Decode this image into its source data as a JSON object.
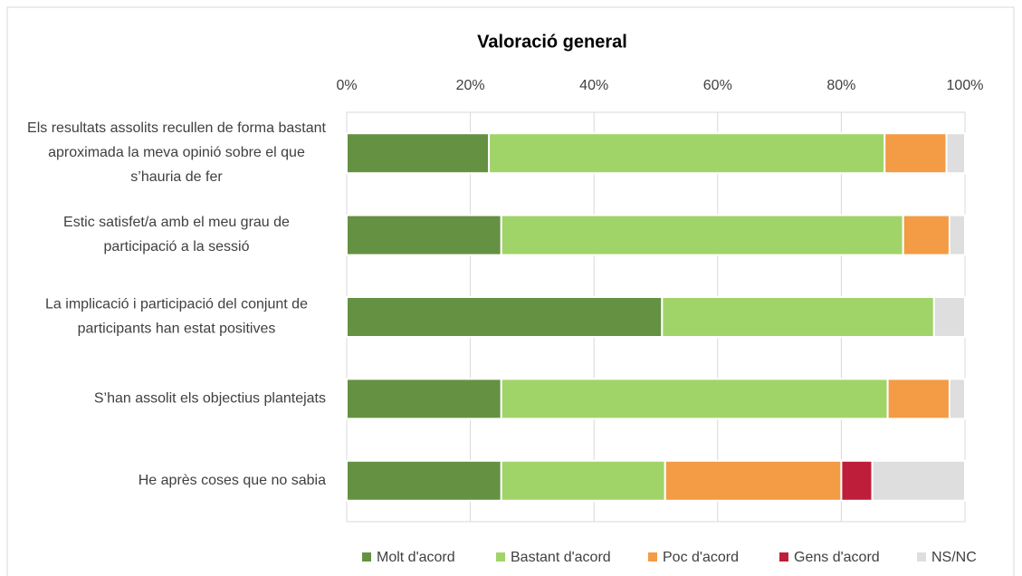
{
  "chart_data": {
    "type": "stacked_barh",
    "title": "Valoració general",
    "categories": [
      "Els resultats assolits recullen de forma bastant aproximada la meva opinió sobre el que s’hauria de fer",
      "Estic satisfet/a amb el meu grau de participació a la sessió",
      "La implicació i participació del conjunt de participants han estat positives",
      "S’han assolit els objectius plantejats",
      "He après coses que no sabia"
    ],
    "series": [
      {
        "name": "Molt d'acord",
        "color": "#659143",
        "values": [
          23,
          25,
          51,
          25,
          25
        ]
      },
      {
        "name": "Bastant d'acord",
        "color": "#a1d468",
        "values": [
          64,
          65,
          44,
          62.5,
          26.5
        ]
      },
      {
        "name": "Poc d'acord",
        "color": "#f39b45",
        "values": [
          10,
          7.5,
          0,
          10,
          28.5
        ]
      },
      {
        "name": "Gens d'acord",
        "color": "#be1e3a",
        "values": [
          0,
          0,
          0,
          0,
          5
        ]
      },
      {
        "name": "NS/NC",
        "color": "#dedede",
        "values": [
          3,
          2.5,
          5,
          2.5,
          15
        ]
      }
    ],
    "xlim": [
      0,
      100
    ],
    "xticks": [
      {
        "value": 0,
        "label": "0%"
      },
      {
        "value": 20,
        "label": "20%"
      },
      {
        "value": 40,
        "label": "40%"
      },
      {
        "value": 60,
        "label": "60%"
      },
      {
        "value": 80,
        "label": "80%"
      },
      {
        "value": 100,
        "label": "100%"
      }
    ],
    "grid": true,
    "legend": "bottom"
  }
}
